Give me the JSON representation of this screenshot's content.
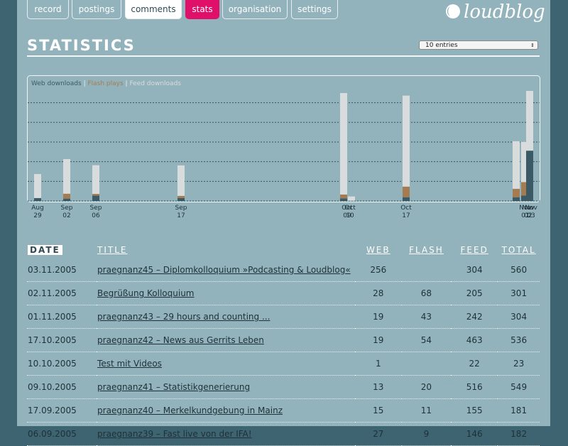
{
  "nav": {
    "tabs": [
      "record",
      "postings",
      "comments",
      "stats",
      "organisation",
      "settings"
    ],
    "active": "comments",
    "highlight": "stats"
  },
  "logo": "loudblog",
  "header": {
    "title": "STATISTICS",
    "select": "10 entries"
  },
  "chart_data": {
    "type": "bar",
    "stacked": true,
    "categories": [
      {
        "month": "Aug",
        "day": "29"
      },
      {
        "month": "Sep",
        "day": "02"
      },
      {
        "month": "Sep",
        "day": "06"
      },
      {
        "month": "Sep",
        "day": "17"
      },
      {
        "month": "Oct",
        "day": "09"
      },
      {
        "month": "Oct",
        "day": "10"
      },
      {
        "month": "Oct",
        "day": "17"
      },
      {
        "month": "Nov",
        "day": "01"
      },
      {
        "month": "Nov",
        "day": "02"
      },
      {
        "month": "Nov",
        "day": "03"
      }
    ],
    "series": [
      {
        "name": "Web downloads",
        "color": "#3b5a66",
        "values": [
          15,
          12,
          27,
          15,
          13,
          1,
          19,
          19,
          28,
          256
        ]
      },
      {
        "name": "Flash plays",
        "color": "#a57c52",
        "values": [
          0,
          25,
          9,
          11,
          20,
          0,
          54,
          43,
          68,
          0
        ]
      },
      {
        "name": "Feed downloads",
        "color": "#d9dcdc",
        "values": [
          122,
          176,
          146,
          155,
          516,
          22,
          463,
          242,
          205,
          304
        ]
      }
    ],
    "ylim": [
      0,
      560
    ],
    "yticks": [
      100,
      200,
      300,
      400,
      500
    ],
    "grid": true
  },
  "table": {
    "columns": [
      "DATE",
      "TITLE",
      "WEB",
      "FLASH",
      "FEED",
      "TOTAL"
    ],
    "rows": [
      [
        "03.11.2005",
        "praegnanz45 – Diplomkolloquium »Podcasting & Loudblog«",
        "256",
        null,
        "304",
        "560"
      ],
      [
        "02.11.2005",
        "Begrüßung Kolloquium",
        "28",
        "68",
        "205",
        "301"
      ],
      [
        "01.11.2005",
        "praegnanz43 – 29 hours and counting ...",
        "19",
        "43",
        "242",
        "304"
      ],
      [
        "17.10.2005",
        "praegnanz42 – News aus Gerrits Leben",
        "19",
        "54",
        "463",
        "536"
      ],
      [
        "10.10.2005",
        "Test mit Videos",
        "1",
        null,
        "22",
        "23"
      ],
      [
        "09.10.2005",
        "praegnanz41 – Statistikgenerierung",
        "13",
        "20",
        "516",
        "549"
      ],
      [
        "17.09.2005",
        "praegnanz40 – Merkelkundgebung in Mainz",
        "15",
        "11",
        "155",
        "181"
      ],
      [
        "06.09.2005",
        "praegnanz39 – Fast live von der IFA!",
        "27",
        "9",
        "146",
        "182"
      ]
    ]
  }
}
